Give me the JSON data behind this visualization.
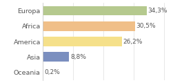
{
  "categories": [
    "Europa",
    "Africa",
    "America",
    "Asia",
    "Oceania"
  ],
  "values": [
    34.3,
    30.5,
    26.2,
    8.8,
    0.2
  ],
  "labels": [
    "34,3%",
    "30,5%",
    "26,2%",
    "8,8%",
    "0,2%"
  ],
  "bar_colors": [
    "#b5c98e",
    "#f0bf88",
    "#f5e08a",
    "#7b8fbf",
    "#f0bf88"
  ],
  "background_color": "#ffffff",
  "xlim": [
    0,
    42
  ],
  "label_fontsize": 6.5,
  "tick_fontsize": 6.8,
  "grid_color": "#dddddd",
  "text_color": "#555555"
}
